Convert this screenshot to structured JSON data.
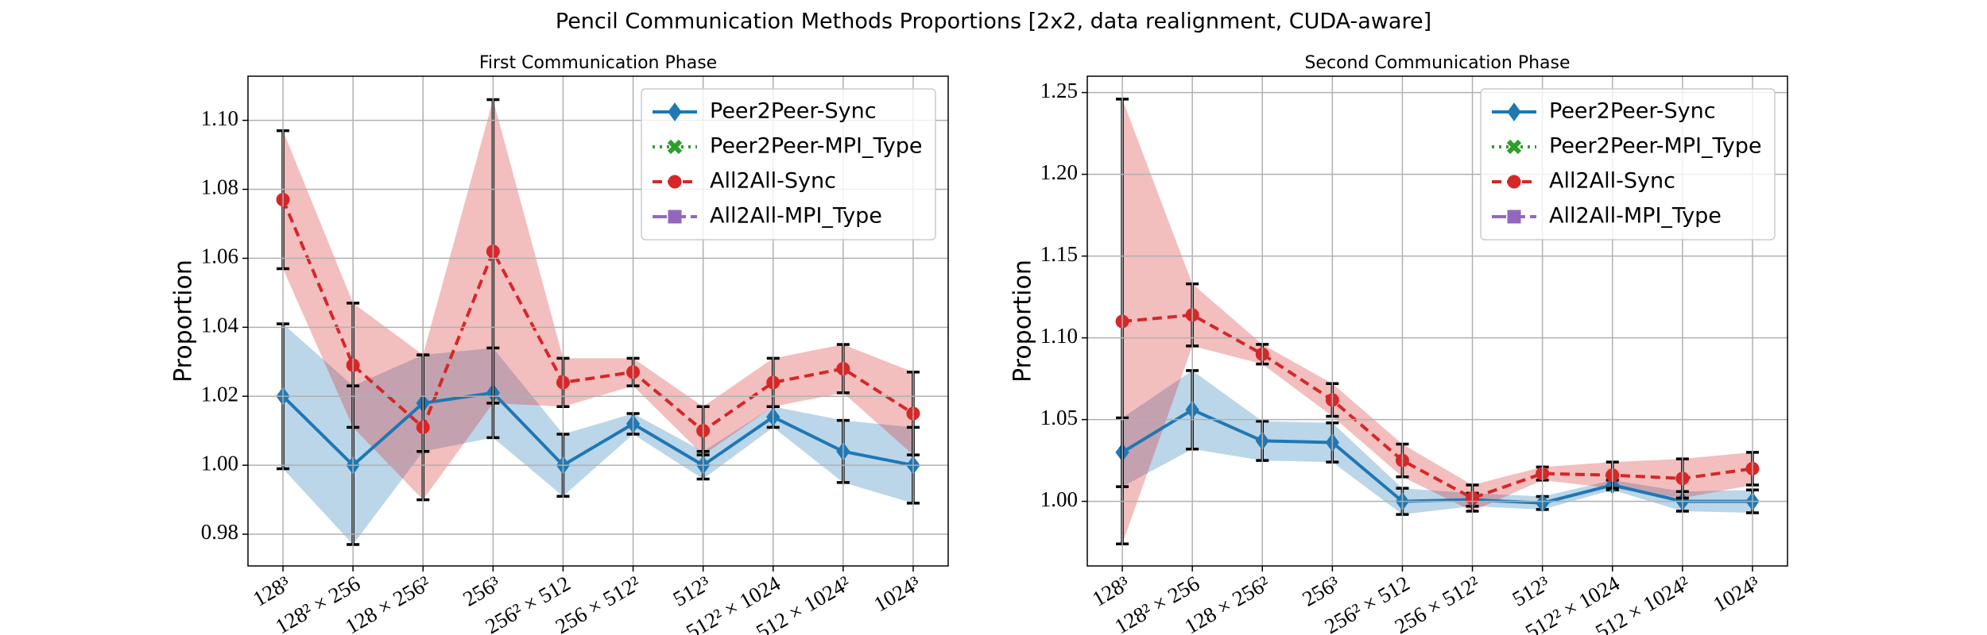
{
  "title": "Pencil Communication Methods Proportions [2x2, data realignment, CUDA-aware]",
  "chart_data": [
    {
      "type": "line",
      "title": "First Communication Phase",
      "ylabel": "Proportion",
      "categories": [
        "128³",
        "128² × 256",
        "128 × 256²",
        "256³",
        "256² × 512",
        "256 × 512²",
        "512³",
        "512² × 1024",
        "512 × 1024²",
        "1024³"
      ],
      "ylim": [
        0.9708,
        1.1128
      ],
      "yticks": [
        0.98,
        {
          "value": 1.0,
          "label": "1.00"
        },
        1.02,
        1.04,
        1.06,
        1.08,
        {
          "value": 1.1,
          "label": "1.10"
        }
      ],
      "grid": true,
      "legend": "upper right",
      "series": [
        {
          "name": "Peer2Peer-Sync",
          "color": "#1f77b4",
          "linestyle": "solid",
          "marker": "diamond",
          "values": [
            1.02,
            1.0,
            1.018,
            1.021,
            1.0,
            1.012,
            1.0,
            1.014,
            1.004,
            1.0
          ],
          "errors": [
            0.021,
            0.023,
            0.014,
            0.013,
            0.009,
            0.003,
            0.004,
            0.003,
            0.009,
            0.011
          ]
        },
        {
          "name": "Peer2Peer-MPI_Type",
          "color": "#2ca02c",
          "linestyle": "dotted",
          "marker": "x",
          "values": [
            null,
            null,
            null,
            null,
            null,
            null,
            null,
            null,
            null,
            null
          ],
          "errors": [
            null,
            null,
            null,
            null,
            null,
            null,
            null,
            null,
            null,
            null
          ]
        },
        {
          "name": "All2All-Sync",
          "color": "#d62728",
          "linestyle": "dashed",
          "marker": "circle",
          "values": [
            1.077,
            1.029,
            1.011,
            1.062,
            1.024,
            1.027,
            1.01,
            1.024,
            1.028,
            1.015
          ],
          "errors": [
            0.02,
            0.018,
            0.021,
            0.044,
            0.007,
            0.004,
            0.007,
            0.007,
            0.007,
            0.012
          ]
        },
        {
          "name": "All2All-MPI_Type",
          "color": "#9467bd",
          "linestyle": "dashdot",
          "marker": "square",
          "values": [
            null,
            null,
            null,
            null,
            null,
            null,
            null,
            null,
            null,
            null
          ],
          "errors": [
            null,
            null,
            null,
            null,
            null,
            null,
            null,
            null,
            null,
            null
          ]
        }
      ]
    },
    {
      "type": "line",
      "title": "Second Communication Phase",
      "ylabel": "Proportion",
      "categories": [
        "128³",
        "128² × 256",
        "128 × 256²",
        "256³",
        "256² × 512",
        "256 × 512²",
        "512³",
        "512² × 1024",
        "512 × 1024²",
        "1024³"
      ],
      "ylim": [
        0.9605,
        1.26
      ],
      "yticks": [
        {
          "value": 1.0,
          "label": "1.00"
        },
        1.05,
        {
          "value": 1.1,
          "label": "1.10"
        },
        1.15,
        {
          "value": 1.2,
          "label": "1.20"
        },
        1.25
      ],
      "grid": true,
      "legend": "upper right",
      "series": [
        {
          "name": "Peer2Peer-Sync",
          "color": "#1f77b4",
          "linestyle": "solid",
          "marker": "diamond",
          "values": [
            1.03,
            1.056,
            1.037,
            1.036,
            1.0,
            1.001,
            0.999,
            1.01,
            1.0,
            1.0
          ],
          "errors": [
            0.021,
            0.024,
            0.012,
            0.012,
            0.008,
            0.004,
            0.004,
            0.003,
            0.006,
            0.007
          ]
        },
        {
          "name": "Peer2Peer-MPI_Type",
          "color": "#2ca02c",
          "linestyle": "dotted",
          "marker": "x",
          "values": [
            null,
            null,
            null,
            null,
            null,
            null,
            null,
            null,
            null,
            null
          ],
          "errors": [
            null,
            null,
            null,
            null,
            null,
            null,
            null,
            null,
            null,
            null
          ]
        },
        {
          "name": "All2All-Sync",
          "color": "#d62728",
          "linestyle": "dashed",
          "marker": "circle",
          "values": [
            1.11,
            1.114,
            1.09,
            1.062,
            1.025,
            1.002,
            1.017,
            1.016,
            1.014,
            1.02
          ],
          "errors": [
            0.136,
            0.019,
            0.006,
            0.01,
            0.01,
            0.008,
            0.004,
            0.008,
            0.012,
            0.01
          ]
        },
        {
          "name": "All2All-MPI_Type",
          "color": "#9467bd",
          "linestyle": "dashdot",
          "marker": "square",
          "values": [
            null,
            null,
            null,
            null,
            null,
            null,
            null,
            null,
            null,
            null
          ],
          "errors": [
            null,
            null,
            null,
            null,
            null,
            null,
            null,
            null,
            null,
            null
          ]
        }
      ]
    }
  ]
}
